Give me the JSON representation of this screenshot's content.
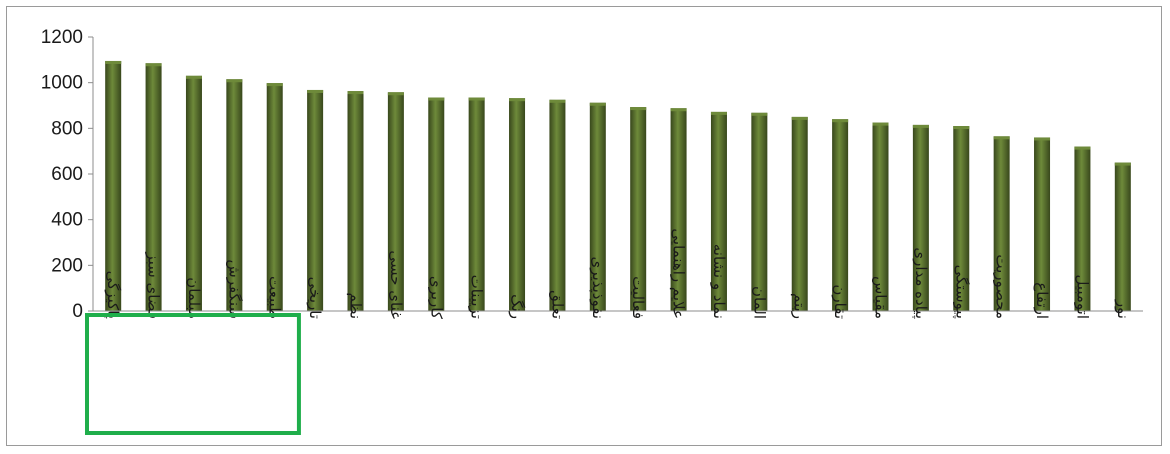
{
  "chart_data": {
    "type": "bar",
    "categories": [
      "پاکیزگی",
      "فضای سبز",
      "مبلمان",
      "سنگفرش",
      "طبیعت",
      "تاریخی",
      "نظم",
      "غنای حسی",
      "کاربری",
      "تزیینات",
      "رنگ",
      "تعلق",
      "نفوذپذیری",
      "فعالیت",
      "علایم راهنمایی",
      "نماد و نشانه",
      "المان",
      "ریتم",
      "تقارن",
      "مقیاس",
      "پیاده مداری",
      "پیوستگی",
      "محصوریت",
      "ارتفاع",
      "اتومبیل",
      "نور"
    ],
    "values": [
      1095,
      1085,
      1030,
      1015,
      998,
      968,
      963,
      958,
      935,
      935,
      932,
      925,
      912,
      893,
      888,
      872,
      868,
      850,
      840,
      825,
      815,
      810,
      765,
      760,
      720,
      650
    ],
    "ylim": [
      0,
      1200
    ],
    "yticks": [
      0,
      200,
      400,
      600,
      800,
      1000,
      1200
    ],
    "grid": false,
    "legend": "none",
    "highlight": {
      "categories": [
        "پاکیزگی",
        "فضای سبز",
        "مبلمان",
        "سنگفرش",
        "طبیعت"
      ],
      "color": "#1fae4b"
    },
    "bar_color": "#4f6228",
    "bar_color_dark": "#38471c",
    "bar_color_light": "#6e8a3a"
  }
}
